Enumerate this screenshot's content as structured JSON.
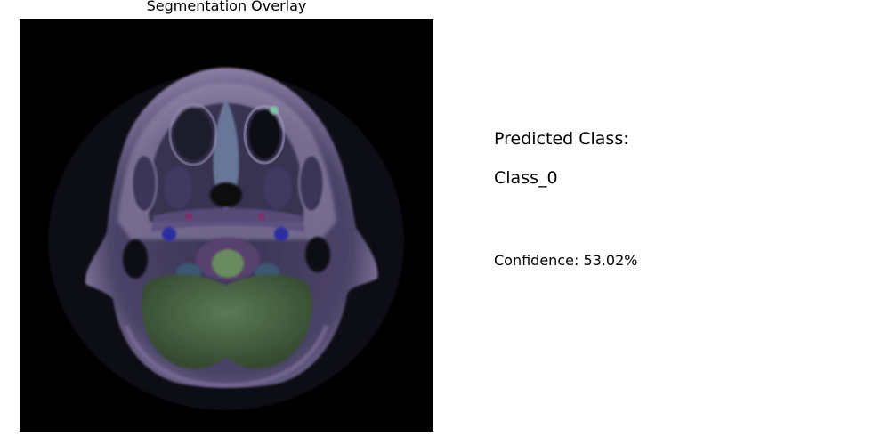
{
  "overlay_panel": {
    "title": "Segmentation Overlay"
  },
  "result_panel": {
    "predicted_label": "Predicted Class:",
    "predicted_value": "Class_0",
    "confidence_text": "Confidence: 53.02%"
  },
  "colors": {
    "background": "#ffffff",
    "image_background": "#000000",
    "tissue_outer": "#6b5a86",
    "tissue_inner": "#3e3a5a",
    "overlay_green": "#4a6a46",
    "overlay_blue": "#2a2a8a",
    "text": "#000000"
  }
}
